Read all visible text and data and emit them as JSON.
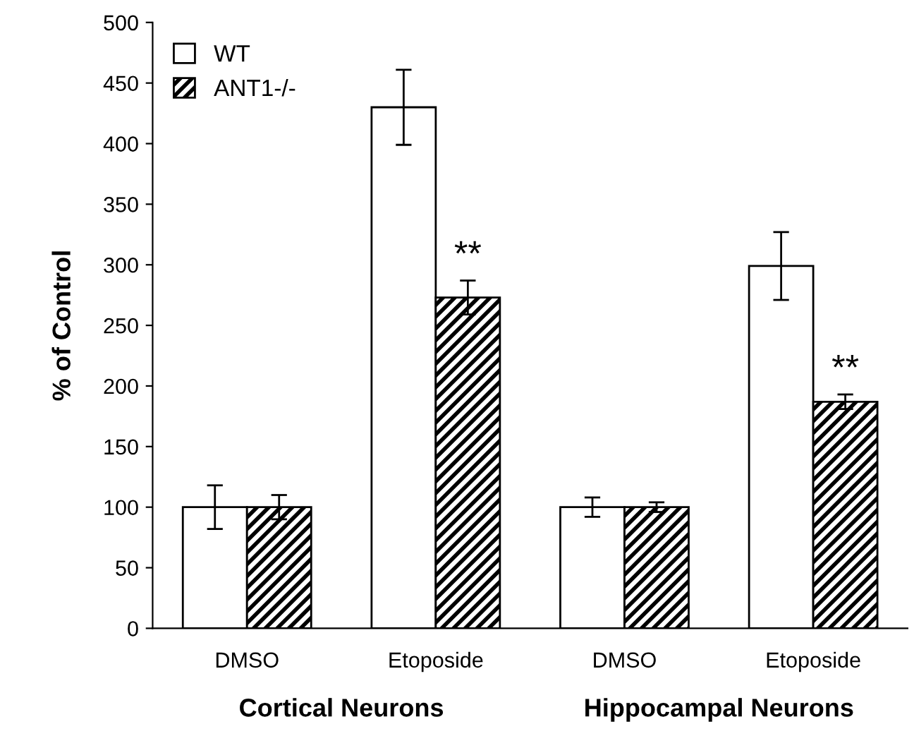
{
  "chart_data": {
    "type": "bar",
    "ylabel": "% of Control",
    "categories": [
      "DMSO",
      "Etoposide",
      "DMSO",
      "Etoposide"
    ],
    "series": [
      {
        "name": "WT",
        "color": "#ffffff",
        "values": [
          100,
          430,
          100,
          299
        ],
        "errors": [
          18,
          31,
          8,
          28
        ]
      },
      {
        "name": "ANT1-/-",
        "color": "#000000",
        "values": [
          100,
          273,
          100,
          187
        ],
        "errors": [
          10,
          14,
          4,
          6
        ]
      }
    ],
    "annotations": [
      "Cortical Neurons",
      "Hippocampal Neurons",
      "**",
      "**"
    ],
    "ylim": [
      0,
      500
    ],
    "yticks": [
      0,
      50,
      100,
      150,
      200,
      250,
      300,
      350,
      400,
      450,
      500
    ],
    "grid": false,
    "legend": "top left"
  }
}
